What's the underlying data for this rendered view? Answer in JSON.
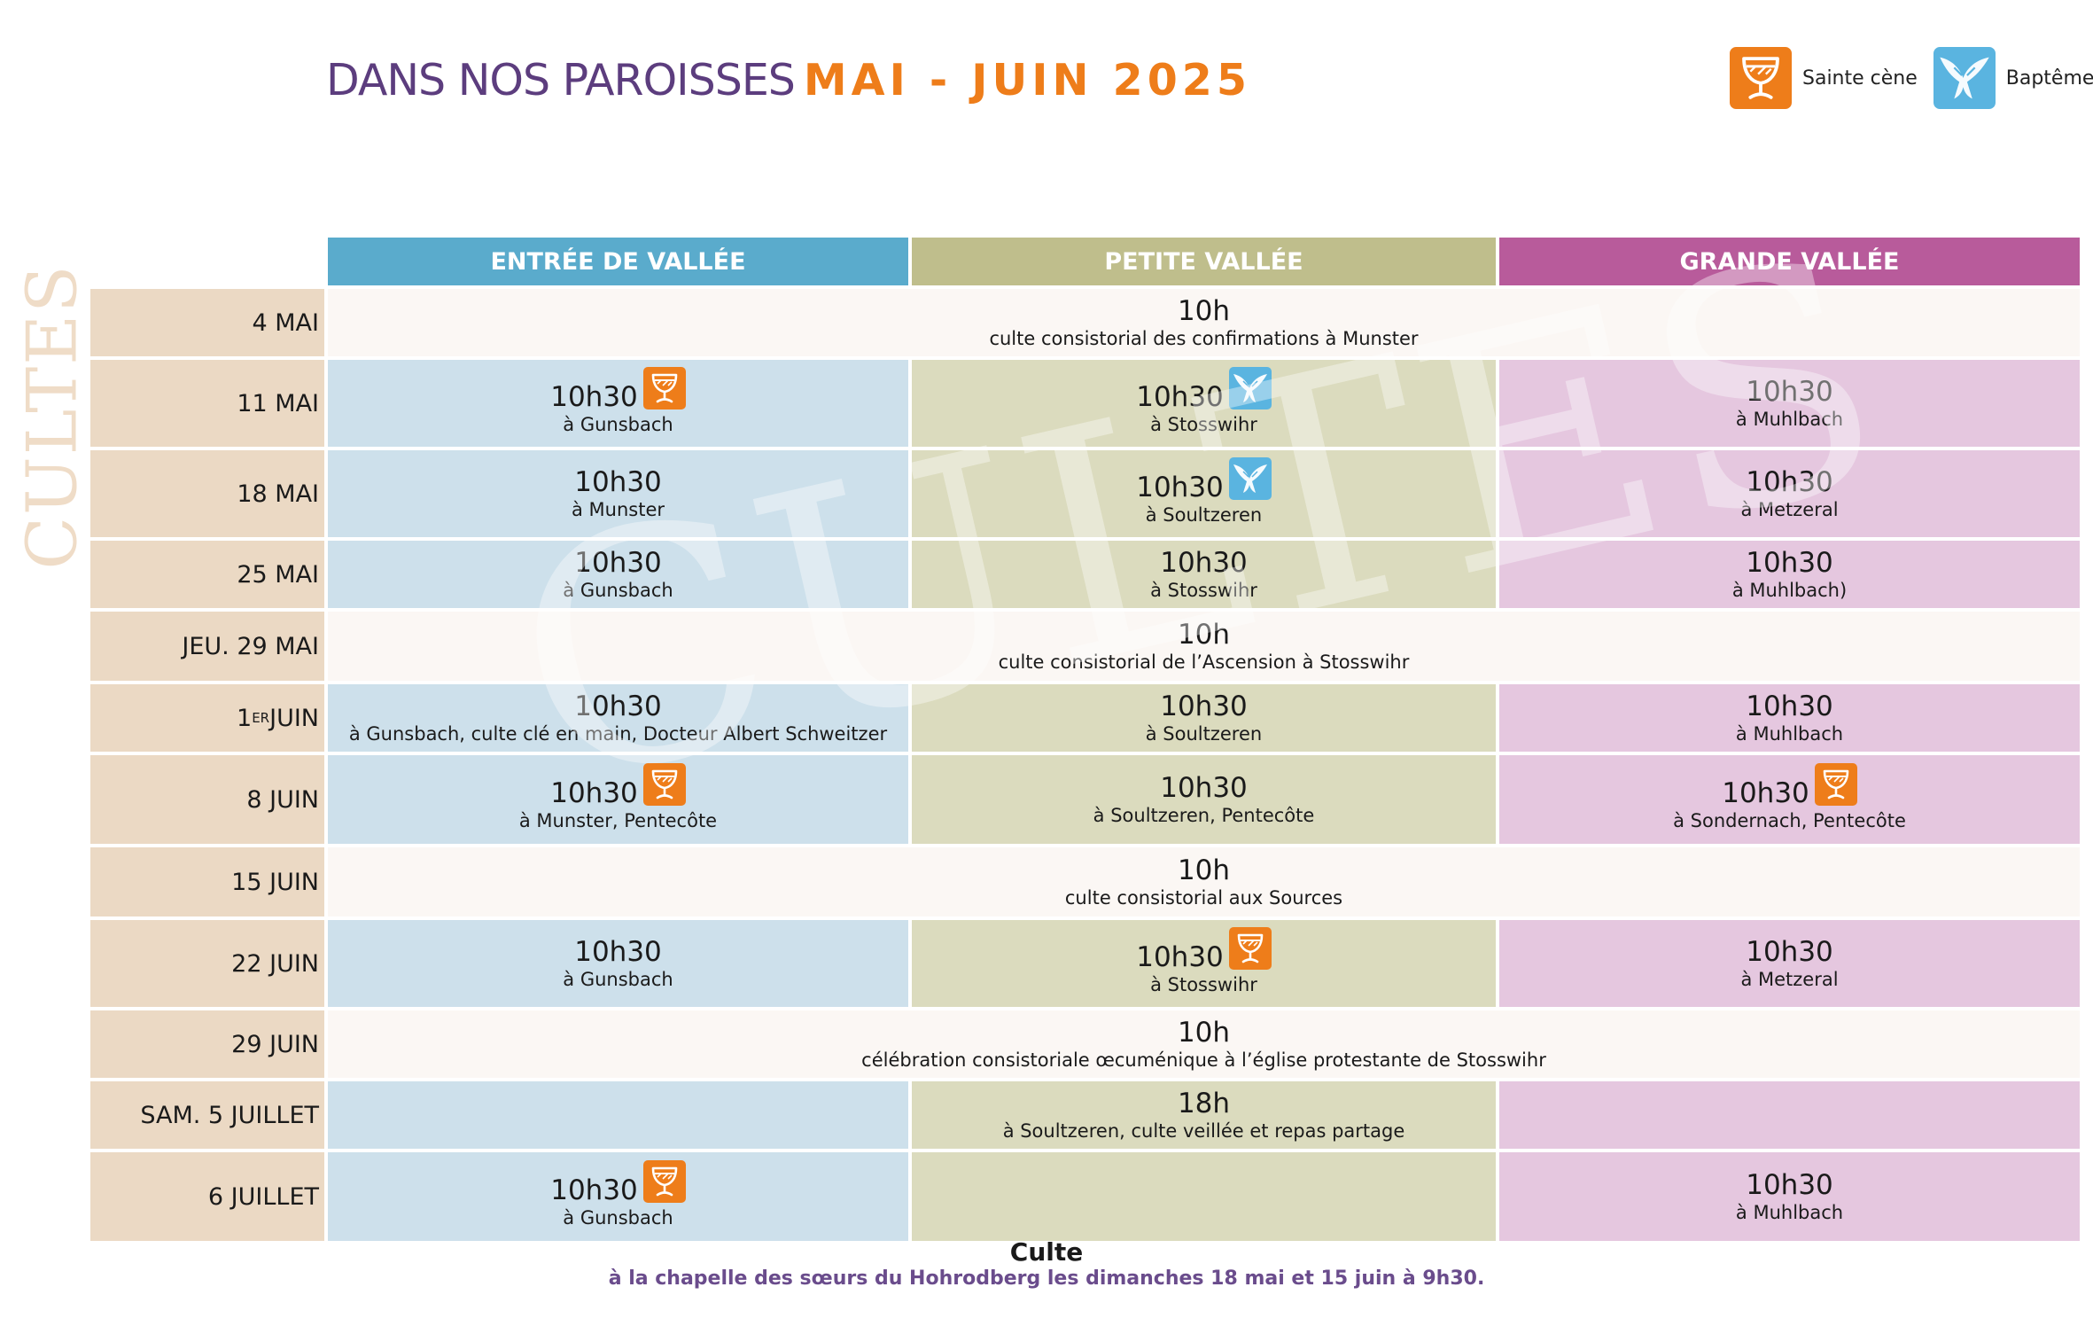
{
  "header": {
    "title_prefix": "DANS NOS PAROISSES",
    "title_highlight": "MAI - JUIN 2025"
  },
  "legend": [
    {
      "label": "Sainte cène",
      "icon": "chalice-icon"
    },
    {
      "label": "Baptême",
      "icon": "dove-icon"
    }
  ],
  "side_label": "CULTES",
  "watermark": "CULTES",
  "colors": {
    "title": "#5c3d7e",
    "accent_orange": "#ee7d1a",
    "baptism_blue": "#5ab4e0",
    "entree": "#5aabcc",
    "petite": "#bfbe8c",
    "grande": "#b85b9b"
  },
  "columns": [
    "ENTRÉE DE VALLÉE",
    "PETITE VALLÉE",
    "GRANDE VALLÉE"
  ],
  "rows": [
    {
      "date": "4 MAI",
      "merged": {
        "time": "10h",
        "place": "culte consistorial des confirmations à Munster"
      }
    },
    {
      "date": "11 MAI",
      "cells": [
        {
          "time": "10h30",
          "place": "à Gunsbach",
          "icon": "chalice-icon"
        },
        {
          "time": "10h30",
          "place": "à Stosswihr",
          "icon": "dove-icon"
        },
        {
          "time": "10h30",
          "place": "à Muhlbach"
        }
      ]
    },
    {
      "date": "18 MAI",
      "cells": [
        {
          "time": "10h30",
          "place": "à Munster"
        },
        {
          "time": "10h30",
          "place": "à Soultzeren",
          "icon": "dove-icon"
        },
        {
          "time": "10h30",
          "place": "à Metzeral"
        }
      ]
    },
    {
      "date": "25 MAI",
      "cells": [
        {
          "time": "10h30",
          "place": "à Gunsbach"
        },
        {
          "time": "10h30",
          "place": "à Stosswihr"
        },
        {
          "time": "10h30",
          "place": "à Muhlbach)"
        }
      ]
    },
    {
      "date": "JEU. 29 MAI",
      "merged": {
        "time": "10h",
        "place": "culte consistorial de l’Ascension à Stosswihr"
      }
    },
    {
      "date": "1",
      "date_sup": "ER",
      "date_suffix": " JUIN",
      "cells": [
        {
          "time": "10h30",
          "place": "à Gunsbach, culte clé en main, Docteur Albert Schweitzer"
        },
        {
          "time": "10h30",
          "place": "à Soultzeren"
        },
        {
          "time": "10h30",
          "place": "à Muhlbach"
        }
      ]
    },
    {
      "date": "8 JUIN",
      "cells": [
        {
          "time": "10h30",
          "place": "à Munster, Pentecôte",
          "icon": "chalice-icon"
        },
        {
          "time": "10h30",
          "place": "à Soultzeren, Pentecôte"
        },
        {
          "time": "10h30",
          "place": "à Sondernach, Pentecôte",
          "icon": "chalice-icon"
        }
      ]
    },
    {
      "date": "15 JUIN",
      "merged": {
        "time": "10h",
        "place": "culte consistorial aux Sources"
      }
    },
    {
      "date": "22 JUIN",
      "cells": [
        {
          "time": "10h30",
          "place": "à Gunsbach"
        },
        {
          "time": "10h30",
          "place": "à Stosswihr",
          "icon": "chalice-icon"
        },
        {
          "time": "10h30",
          "place": "à Metzeral"
        }
      ]
    },
    {
      "date": "29 JUIN",
      "merged": {
        "time": "10h",
        "place": "célébration consistoriale œcuménique à l’église protestante de Stosswihr"
      }
    },
    {
      "date": "SAM. 5 JUILLET",
      "cells": [
        {},
        {
          "time": "18h",
          "place": "à Soultzeren, culte veillée et repas partage"
        },
        {}
      ]
    },
    {
      "date": "6 JUILLET",
      "cells": [
        {
          "time": "10h30",
          "place": "à Gunsbach",
          "icon": "chalice-icon"
        },
        {},
        {
          "time": "10h30",
          "place": "à Muhlbach"
        }
      ]
    }
  ],
  "footer": {
    "title": "Culte",
    "text": "à la chapelle des sœurs du Hohrodberg les dimanches 18 mai et 15 juin à 9h30."
  }
}
